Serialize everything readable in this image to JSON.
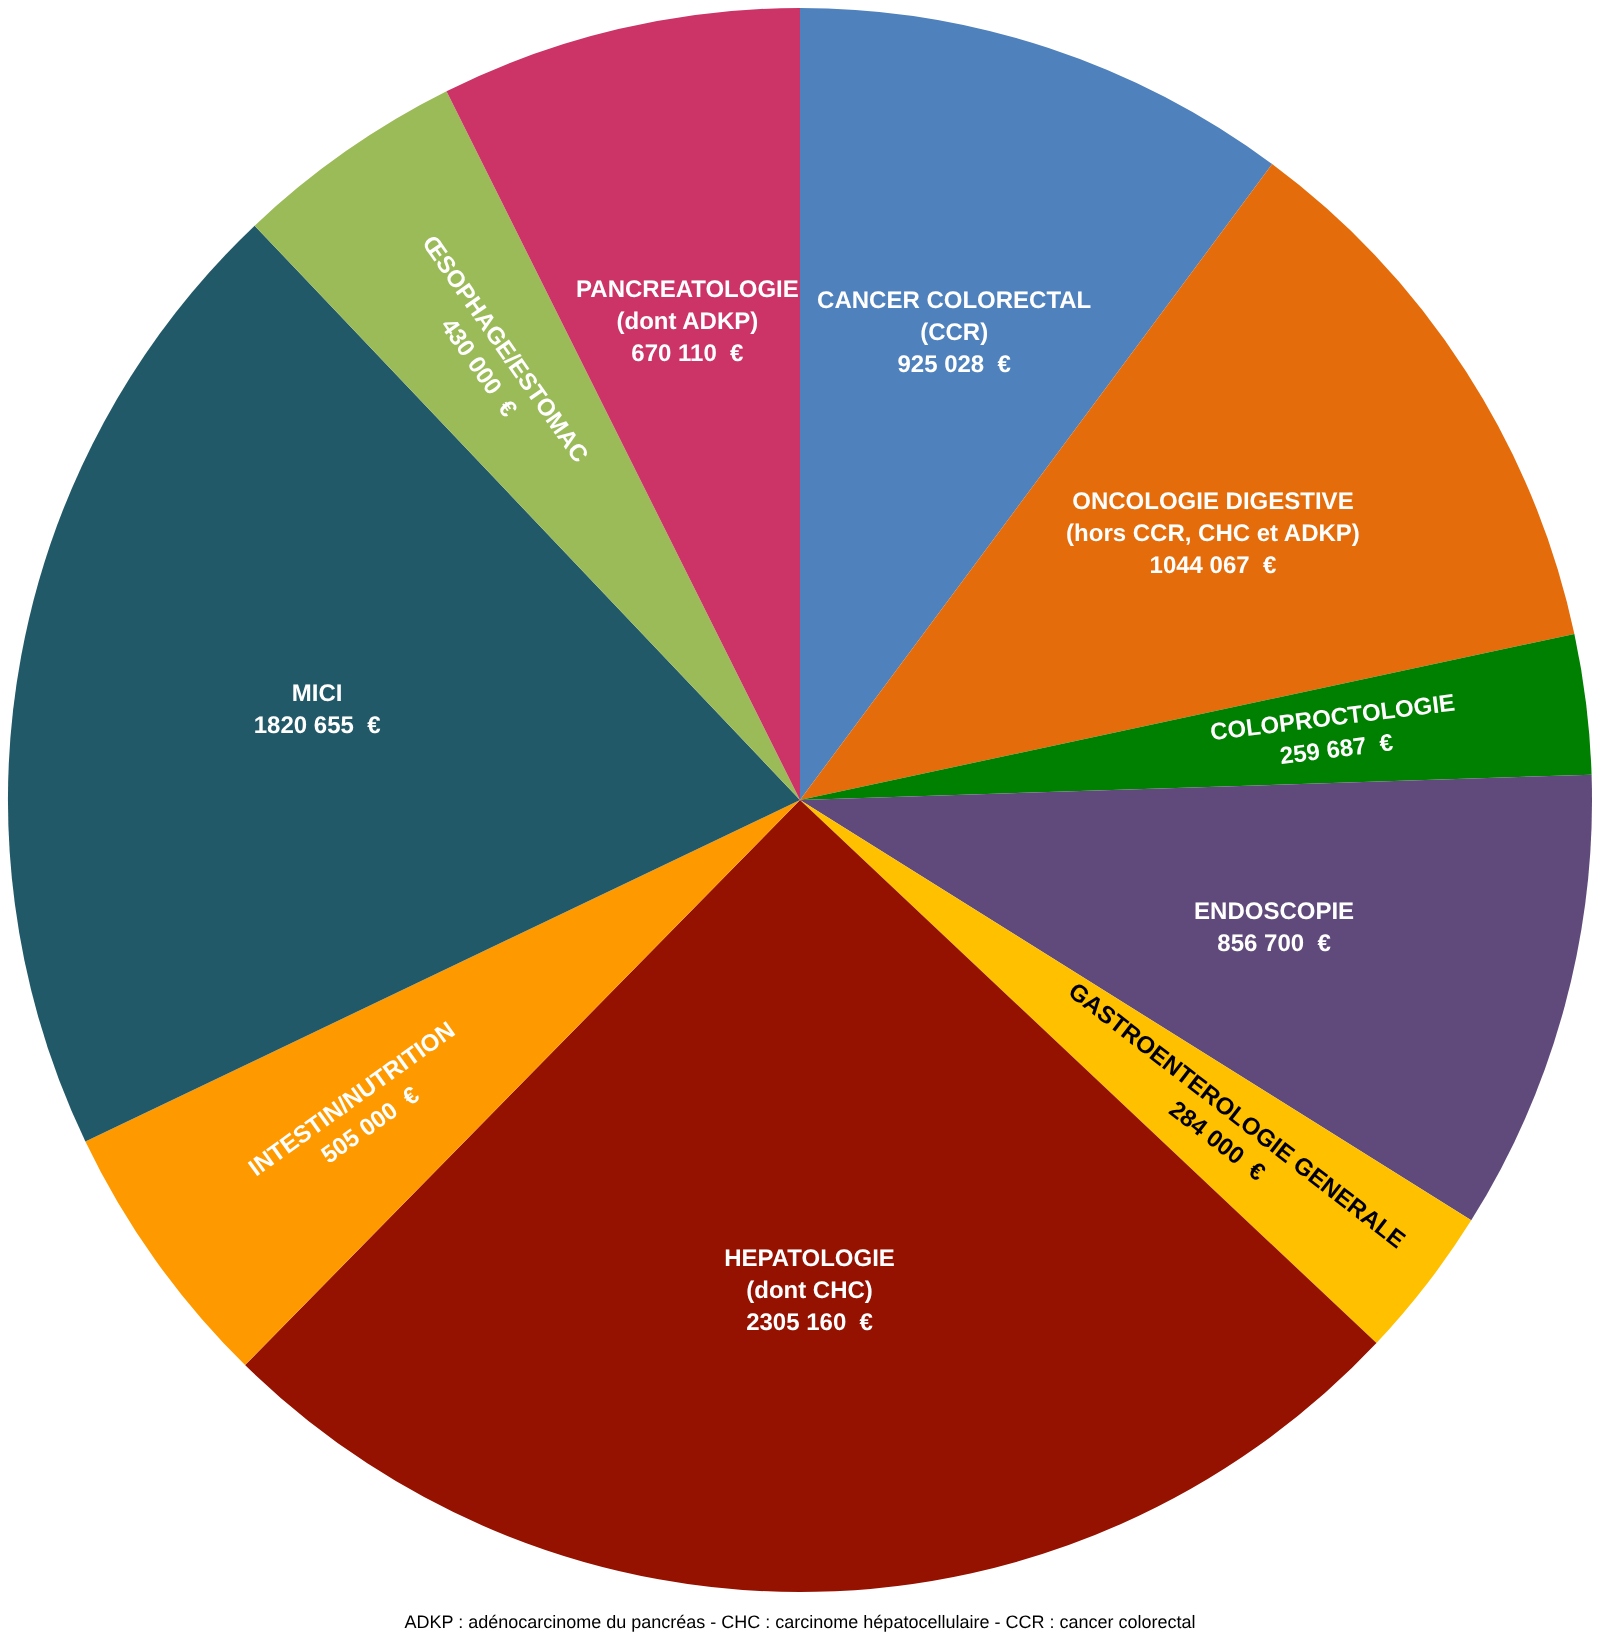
{
  "chart_data": {
    "type": "pie",
    "categories": [
      "CANCER COLORECTAL\n(CCR)",
      "ONCOLOGIE DIGESTIVE\n(hors CCR, CHC et ADKP)",
      "COLOPROCTOLOGIE",
      "ENDOSCOPIE",
      "GASTROENTEROLOGIE GENERALE",
      "HEPATOLOGIE\n(dont CHC)",
      "INTESTIN/NUTRITION",
      "MICI",
      "ŒSOPHAGE/ESTOMAC",
      "PANCREATOLOGIE\n(dont ADKP)"
    ],
    "values": [
      925028,
      1044067,
      259687,
      856700,
      284000,
      2305160,
      505000,
      1820655,
      430000,
      670110
    ],
    "value_labels": [
      "925 028  €",
      "1044 067  €",
      "259 687  €",
      "856 700  €",
      "284 000  €",
      "2305 160  €",
      "505 000  €",
      "1820 655  €",
      "430 000  €",
      "670 110  €"
    ],
    "colors": [
      "#4f81bd",
      "#e46c0a",
      "#008000",
      "#604a7b",
      "#ffc000",
      "#951100",
      "#ff9900",
      "#215968",
      "#9bbb59",
      "#cc3366"
    ],
    "legend": false,
    "annotations": [
      "ADKP : adénocarcinome du pancréas - CHC : carcinome hépatocellulaire - CCR : cancer colorectal"
    ]
  }
}
